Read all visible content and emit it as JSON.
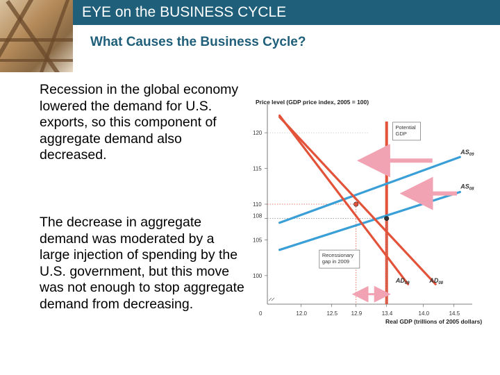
{
  "header": {
    "title": "EYE on the BUSINESS CYCLE"
  },
  "subtitle": "What Causes the Business Cycle?",
  "paragraphs": [
    "Recession in the global economy lowered the demand for U.S. exports, so this component of aggregate demand also decreased.",
    "The decrease in aggregate demand was moderated by a large injection of spending by the U.S. government, but this move was not enough to stop aggregate demand from decreasing."
  ],
  "colors": {
    "header": "#1f5f7a",
    "ad": "#e2533a",
    "as": "#3a9fd6",
    "potential_gdp": "#e2533a",
    "highlight": "#e2533a"
  },
  "chart_data": {
    "type": "line",
    "title": "",
    "ylabel": "Price level (GDP price index, 2005 = 100)",
    "xlabel": "Real GDP (trillions of 2005 dollars)",
    "xlim": [
      11.45,
      14.8
    ],
    "ylim": [
      96,
      124
    ],
    "x_ticks": [
      "0",
      "12.0",
      "12.5",
      "12.9",
      "13.4",
      "14.0",
      "14.5"
    ],
    "y_ticks": [
      "100",
      "105",
      "108",
      "110",
      "115",
      "120"
    ],
    "highlighted_ticks": {
      "x": "12.9",
      "y": "110"
    },
    "series": [
      {
        "name": "AS08",
        "label_main": "AS",
        "label_sub": "08",
        "x": [
          11.65,
          14.6
        ],
        "y": [
          103.6,
          111.7
        ]
      },
      {
        "name": "AS09",
        "label_main": "AS",
        "label_sub": "09",
        "x": [
          11.65,
          14.6
        ],
        "y": [
          107.4,
          116.6
        ]
      },
      {
        "name": "AD08",
        "label_main": "AD",
        "label_sub": "08",
        "x": [
          11.65,
          14.2
        ],
        "y": [
          122.2,
          98.8
        ]
      },
      {
        "name": "AD09",
        "label_main": "AD",
        "label_sub": "09",
        "x": [
          11.65,
          13.75
        ],
        "y": [
          122.4,
          98.8
        ]
      }
    ],
    "vertical_lines": [
      {
        "name": "Potential GDP",
        "x": 13.4
      }
    ],
    "equilibria": [
      {
        "name": "2008",
        "x": 13.4,
        "y": 108
      },
      {
        "name": "2009",
        "x": 12.9,
        "y": 110
      }
    ],
    "annotations": [
      {
        "text_lines": [
          "Potential",
          "GDP"
        ],
        "x": 13.5,
        "y": 120.6
      },
      {
        "text_lines": [
          "Recessionary",
          "gap in 2009"
        ],
        "x": 12.3,
        "y": 102.7
      }
    ],
    "arrows": [
      {
        "desc": "AS shift left",
        "from": [
          14.15,
          116.1
        ],
        "to": [
          13.05,
          116.1
        ]
      },
      {
        "desc": "AS shift up",
        "from": [
          14.55,
          111.5
        ],
        "to": [
          13.75,
          111.5
        ]
      },
      {
        "desc": "Recessionary gap",
        "from": [
          12.9,
          97.4
        ],
        "to": [
          13.4,
          97.4
        ]
      }
    ]
  }
}
